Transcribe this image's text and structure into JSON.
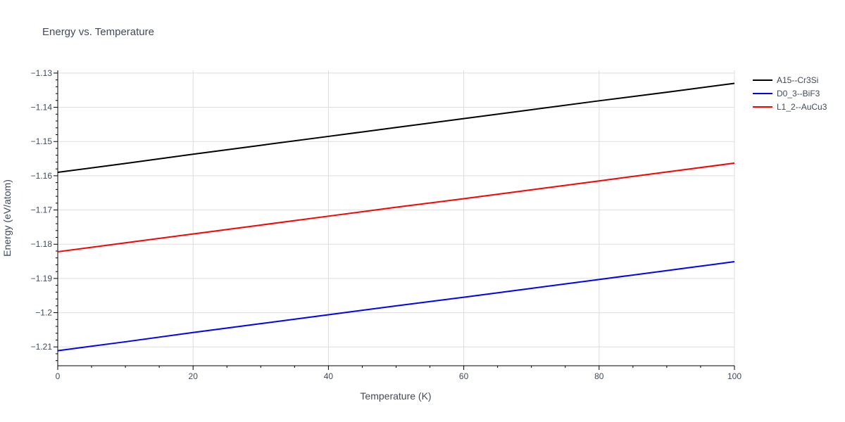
{
  "chart_data": {
    "type": "line",
    "title": "Energy vs. Temperature",
    "xlabel": "Temperature (K)",
    "ylabel": "Energy (eV/atom)",
    "xlim": [
      0,
      100
    ],
    "ylim": [
      -1.2155,
      -1.1292
    ],
    "x_ticks": [
      0,
      20,
      40,
      60,
      80,
      100
    ],
    "y_ticks": [
      -1.21,
      -1.2,
      -1.19,
      -1.18,
      -1.17,
      -1.16,
      -1.15,
      -1.14,
      -1.13
    ],
    "y_tick_labels": [
      "−1.21",
      "−1.2",
      "−1.19",
      "−1.18",
      "−1.17",
      "−1.16",
      "−1.15",
      "−1.14",
      "−1.13"
    ],
    "grid": true,
    "legend_position": "top-right",
    "x": [
      0,
      10,
      20,
      30,
      40,
      50,
      60,
      70,
      80,
      90,
      100
    ],
    "series": [
      {
        "name": "A15--Cr3Si",
        "color": "#000000",
        "values": [
          -1.159,
          -1.1564,
          -1.1537,
          -1.1511,
          -1.1485,
          -1.1459,
          -1.1433,
          -1.1407,
          -1.1381,
          -1.1356,
          -1.133
        ]
      },
      {
        "name": "D0_3--BiF3",
        "color": "#0000ff",
        "values": [
          -1.2111,
          -1.2085,
          -1.2058,
          -1.2032,
          -1.2006,
          -1.198,
          -1.1955,
          -1.1929,
          -1.1903,
          -1.1877,
          -1.1851
        ]
      },
      {
        "name": "L1_2--AuCu3",
        "color": "#ff0000",
        "values": [
          -1.1822,
          -1.1796,
          -1.177,
          -1.1744,
          -1.1718,
          -1.1692,
          -1.1667,
          -1.1641,
          -1.1615,
          -1.1589,
          -1.1563
        ]
      }
    ]
  }
}
